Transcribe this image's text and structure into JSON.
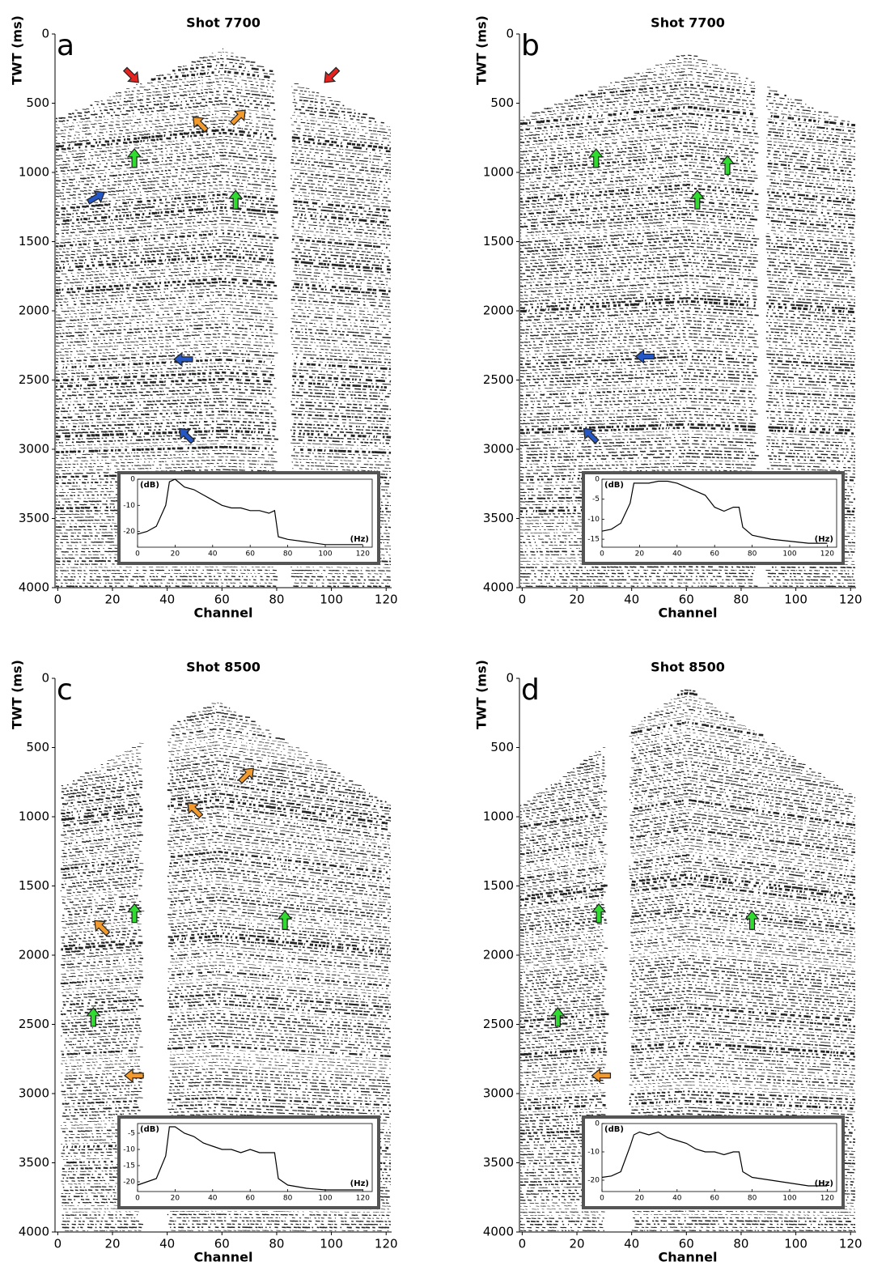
{
  "chart_data": [
    {
      "type": "seismic",
      "panel_label": "a",
      "title": "Shot 7700",
      "xlabel": "Channel",
      "ylabel": "TWT (ms)",
      "xlim": [
        -1,
        122
      ],
      "ylim": [
        0,
        4000
      ],
      "yaxis_inverted": true,
      "xticks": [
        0,
        20,
        40,
        60,
        80,
        100,
        120
      ],
      "yticks": [
        0,
        500,
        1000,
        1500,
        2000,
        2500,
        3000,
        3500,
        4000
      ],
      "inset": {
        "type": "line",
        "ylabel": "(dB)",
        "xlabel": "(Hz)",
        "xlim": [
          0,
          125
        ],
        "ylim": [
          -26,
          0
        ],
        "xticks": [
          0,
          20,
          40,
          60,
          80,
          100,
          120
        ],
        "yticks": [
          -20,
          -10,
          0
        ],
        "x": [
          0,
          5,
          10,
          15,
          17,
          20,
          25,
          30,
          35,
          40,
          45,
          50,
          55,
          60,
          65,
          70,
          73,
          75,
          80,
          90,
          100,
          110,
          120
        ],
        "series": [
          {
            "color": "#000000",
            "values": [
              -21,
              -20,
              -18,
              -10,
              -1,
              0,
              -3,
              -4,
              -6,
              -8,
              -10,
              -11,
              -11,
              -12,
              -12,
              -13,
              -12,
              -22,
              -23,
              -24,
              -25,
              -25,
              -25
            ]
          }
        ]
      }
    },
    {
      "type": "seismic",
      "panel_label": "b",
      "title": "Shot 7700",
      "xlabel": "Channel",
      "ylabel": "TWT (ms)",
      "xlim": [
        -1,
        122
      ],
      "ylim": [
        0,
        4000
      ],
      "yaxis_inverted": true,
      "xticks": [
        0,
        20,
        40,
        60,
        80,
        100,
        120
      ],
      "yticks": [
        0,
        500,
        1000,
        1500,
        2000,
        2500,
        3000,
        3500,
        4000
      ],
      "inset": {
        "type": "line",
        "ylabel": "(dB)",
        "xlabel": "(Hz)",
        "xlim": [
          0,
          125
        ],
        "ylim": [
          -17,
          0
        ],
        "xticks": [
          0,
          20,
          40,
          60,
          80,
          100,
          120
        ],
        "yticks": [
          -15,
          -10,
          -5,
          0
        ],
        "x": [
          0,
          5,
          10,
          15,
          17,
          20,
          25,
          30,
          35,
          40,
          45,
          50,
          55,
          60,
          65,
          70,
          73,
          75,
          80,
          90,
          100,
          110,
          120
        ],
        "series": [
          {
            "color": "#000000",
            "values": [
              -13,
              -12.5,
              -11,
              -6,
              -1,
              -1,
              -1,
              -0.5,
              -0.5,
              -1,
              -2,
              -3,
              -4,
              -7,
              -8,
              -7,
              -7,
              -12,
              -14,
              -15,
              -15.5,
              -16,
              -16
            ]
          }
        ]
      }
    },
    {
      "type": "seismic",
      "panel_label": "c",
      "title": "Shot 8500",
      "xlabel": "Channel",
      "ylabel": "TWT (ms)",
      "xlim": [
        -1,
        122
      ],
      "ylim": [
        0,
        4000
      ],
      "yaxis_inverted": true,
      "xticks": [
        0,
        20,
        40,
        60,
        80,
        100,
        120
      ],
      "yticks": [
        0,
        500,
        1000,
        1500,
        2000,
        2500,
        3000,
        3500,
        4000
      ],
      "inset": {
        "type": "line",
        "ylabel": "(dB)",
        "xlabel": "(Hz)",
        "xlim": [
          0,
          125
        ],
        "ylim": [
          -23,
          -2
        ],
        "xticks": [
          0,
          20,
          40,
          60,
          80,
          100,
          120
        ],
        "yticks": [
          -20,
          -15,
          -10,
          -5
        ],
        "x": [
          0,
          5,
          10,
          15,
          17,
          20,
          25,
          30,
          35,
          40,
          45,
          50,
          55,
          60,
          65,
          70,
          73,
          75,
          80,
          90,
          100,
          110,
          120
        ],
        "series": [
          {
            "color": "#000000",
            "values": [
              -21,
              -20,
              -19,
              -12,
              -3,
              -3,
              -5,
              -6,
              -8,
              -9,
              -10,
              -10,
              -11,
              -10,
              -11,
              -11,
              -11,
              -19,
              -21,
              -22,
              -22.5,
              -22.5,
              -22.5
            ]
          }
        ]
      }
    },
    {
      "type": "seismic",
      "panel_label": "d",
      "title": "Shot 8500",
      "xlabel": "Channel",
      "ylabel": "TWT (ms)",
      "xlim": [
        -1,
        122
      ],
      "ylim": [
        0,
        4000
      ],
      "yaxis_inverted": true,
      "xticks": [
        0,
        20,
        40,
        60,
        80,
        100,
        120
      ],
      "yticks": [
        0,
        500,
        1000,
        1500,
        2000,
        2500,
        3000,
        3500,
        4000
      ],
      "inset": {
        "type": "line",
        "ylabel": "(dB)",
        "xlabel": "(Hz)",
        "xlim": [
          0,
          125
        ],
        "ylim": [
          -24,
          0
        ],
        "xticks": [
          0,
          20,
          40,
          60,
          80,
          100,
          120
        ],
        "yticks": [
          -20,
          -10,
          0
        ],
        "x": [
          0,
          5,
          10,
          15,
          17,
          20,
          25,
          30,
          35,
          40,
          45,
          50,
          55,
          60,
          65,
          70,
          73,
          75,
          80,
          90,
          100,
          110,
          120
        ],
        "series": [
          {
            "color": "#000000",
            "values": [
              -19,
              -18.5,
              -17,
              -8,
              -4,
              -3,
              -4,
              -3,
              -5,
              -6,
              -7,
              -9,
              -10,
              -10,
              -11,
              -10,
              -10,
              -17,
              -19,
              -20,
              -21,
              -22,
              -22
            ]
          }
        ]
      }
    }
  ]
}
